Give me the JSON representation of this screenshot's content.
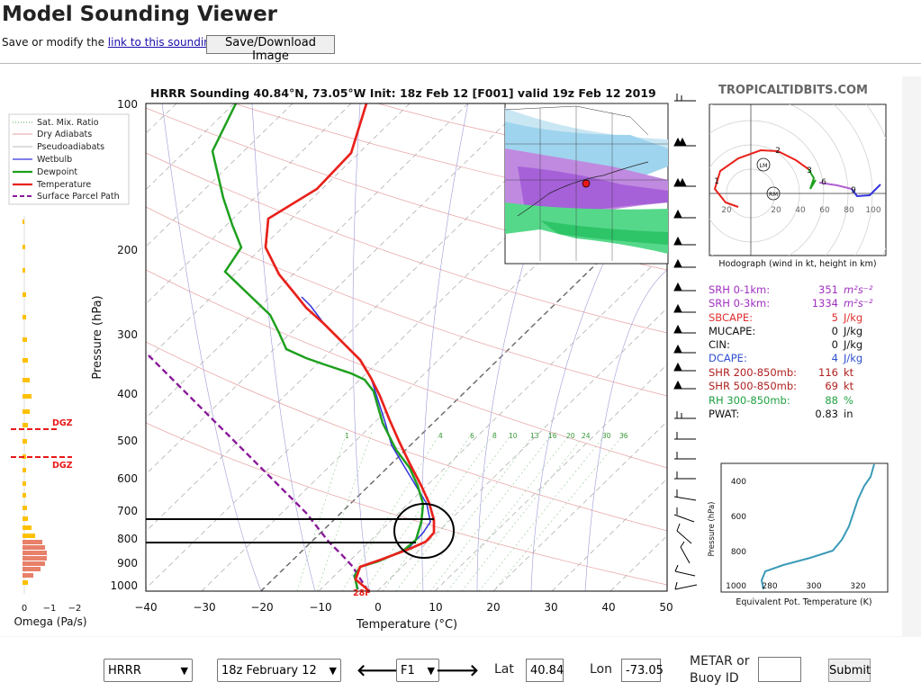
{
  "header": {
    "title": "Model Sounding Viewer",
    "subline_prefix": "Save or modify the ",
    "link_text": "link to this sounding",
    "subline_suffix": ".",
    "save_button": "Save/Download Image"
  },
  "sounding": {
    "title": "HRRR Sounding 40.84°N, 73.05°W Init: 18z Feb 12 [F001] valid 19z Feb 12 2019",
    "brand": "TROPICALTIDBITS.COM",
    "legend": [
      "Sat. Mix. Ratio",
      "Dry Adiabats",
      "Pseudoadiabats",
      "Wetbulb",
      "Dewpoint",
      "Temperature",
      "Surface Parcel Path"
    ],
    "pressure_label": "Pressure (hPa)",
    "temperature_label": "Temperature (°C)",
    "pressure_ticks": [
      "100",
      "200",
      "300",
      "400",
      "500",
      "600",
      "700",
      "800",
      "900",
      "1000"
    ],
    "temp_ticks": [
      "−40",
      "−30",
      "−20",
      "−10",
      "0",
      "10",
      "20",
      "30",
      "40",
      "50"
    ],
    "mix_ratio_ticks": [
      "1",
      "2",
      "4",
      "6",
      "8",
      "10",
      "13",
      "16",
      "20",
      "24",
      "30",
      "36"
    ],
    "surface_temp": "28F",
    "omega_label": "Omega (Pa/s)",
    "omega_ticks": [
      "0",
      "−1",
      "−2"
    ],
    "dgz_label": "DGZ",
    "hodograph_caption": "Hodograph (wind in kt, height in km)",
    "hodograph_rings": [
      "20",
      "20",
      "40",
      "60",
      "80",
      "100"
    ],
    "hodograph_heights": [
      "1",
      "2",
      "3",
      "6",
      "9"
    ],
    "hodograph_lm": "LM",
    "hodograph_rm": "RM",
    "indices": [
      {
        "label": "SRH 0-1km:",
        "value": "351",
        "unit": "m²s⁻²"
      },
      {
        "label": "SRH 0-3km:",
        "value": "1334",
        "unit": "m²s⁻²"
      },
      {
        "label": "SBCAPE:",
        "value": "5",
        "unit": "J/kg"
      },
      {
        "label": "MUCAPE:",
        "value": "0",
        "unit": "J/kg"
      },
      {
        "label": "CIN:",
        "value": "0",
        "unit": "J/kg"
      },
      {
        "label": "DCAPE:",
        "value": "4",
        "unit": "J/kg"
      },
      {
        "label": "SHR 200-850mb:",
        "value": "116",
        "unit": "kt"
      },
      {
        "label": "SHR 500-850mb:",
        "value": "69",
        "unit": "kt"
      },
      {
        "label": "RH 300-850mb:",
        "value": "88",
        "unit": "%"
      },
      {
        "label": "PWAT:",
        "value": "0.83",
        "unit": "in"
      }
    ],
    "theta_e_ylabel": "Pressure (hPa)",
    "theta_e_xlabel": "Equivalent Pot. Temperature (K)",
    "theta_e_yticks": [
      "400",
      "600",
      "800",
      "1000"
    ],
    "theta_e_xticks": [
      "280",
      "300",
      "320"
    ]
  },
  "colors": {
    "temperature": "#e8221b",
    "dewpoint": "#1ea01e",
    "wetbulb": "#3333dd",
    "parcel": "#8a1a9a",
    "dgz": "#e81818",
    "omega_positive": "#ffc000",
    "omega_negative": "#e06060",
    "srh": "#a030c0",
    "cape": "#e03030",
    "dcape": "#3050d0",
    "shear": "#b02020",
    "rh": "#20a040",
    "theta_e": "#3a9ab8"
  },
  "controls": {
    "model": "HRRR",
    "run": "18z February 12",
    "forecast_hour": "F1",
    "prev_label": "🡐",
    "next_label": "🡒",
    "lat_label": "Lat",
    "lat_value": "40.84",
    "lon_label": "Lon",
    "lon_value": "-73.05",
    "metar_label_1": "METAR or",
    "metar_label_2": "Buoy ID",
    "metar_value": "",
    "submit": "Submit"
  }
}
